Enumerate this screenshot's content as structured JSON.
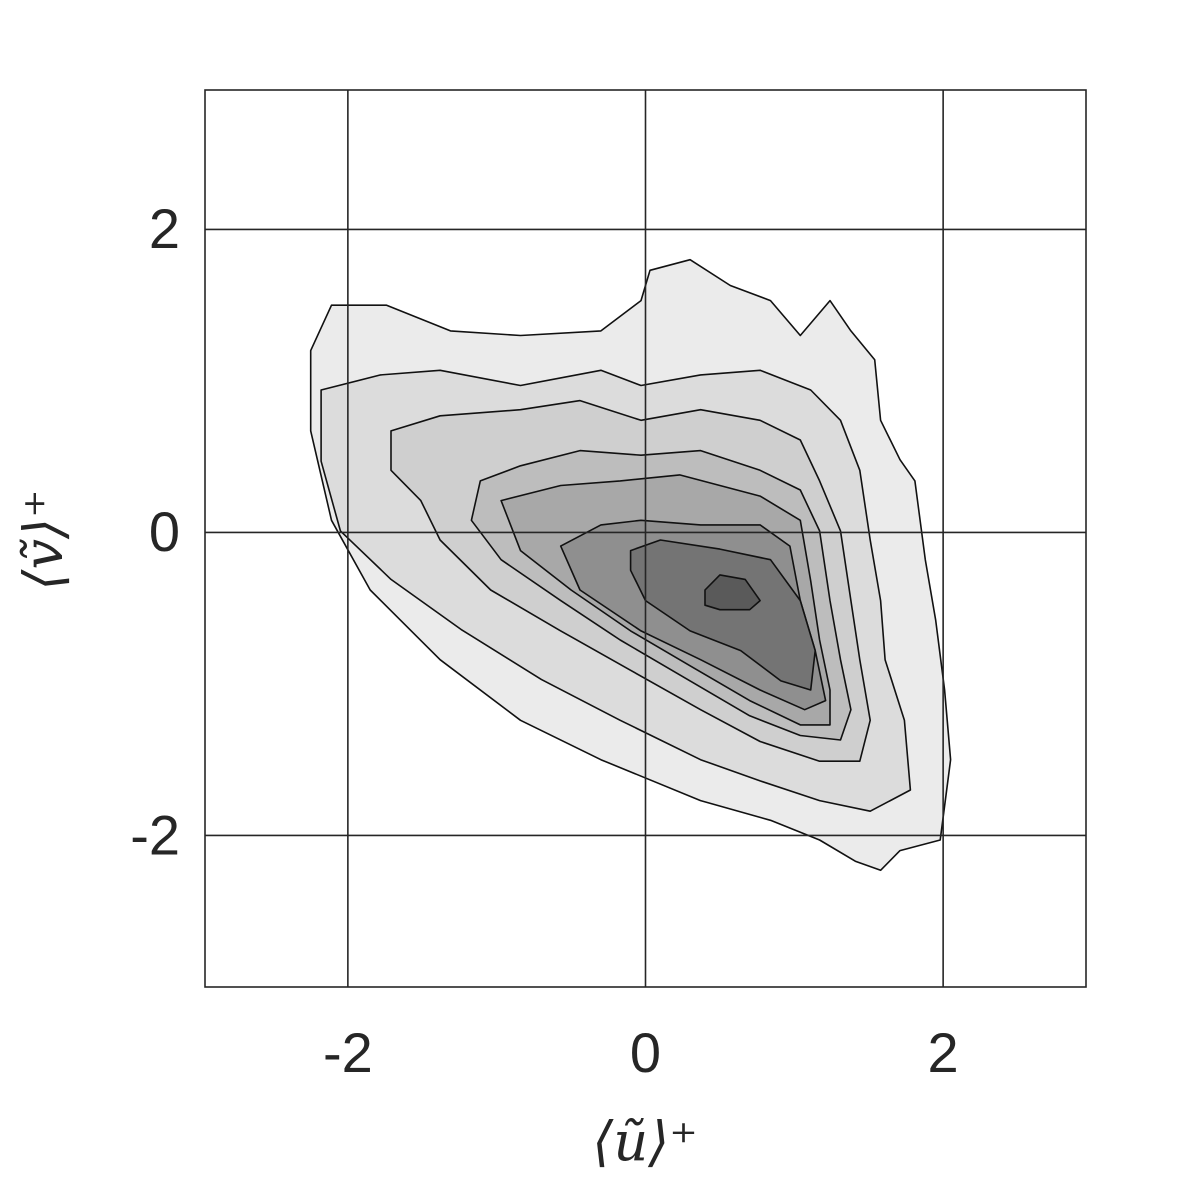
{
  "chart_data": {
    "type": "contour",
    "x_label": "⟨ũ⟩⁺",
    "y_label": "⟨ṽ⟩⁺",
    "xlim": [
      -2.96,
      2.96
    ],
    "ylim": [
      -3.0,
      2.92
    ],
    "xticks": [
      -2,
      0,
      2
    ],
    "yticks": [
      -2,
      0,
      2
    ],
    "grid": true,
    "contours": [
      {
        "color": "#ebebeb",
        "x": [
          -2.25,
          -2.11,
          -1.74,
          -1.31,
          -0.84,
          -0.3,
          -0.03,
          0.03,
          0.3,
          0.57,
          0.84,
          1.04,
          1.24,
          1.38,
          1.54,
          1.58,
          1.71,
          1.81,
          1.88,
          1.95,
          2.01,
          2.05,
          1.98,
          1.71,
          1.58,
          1.41,
          1.17,
          0.84,
          0.37,
          -0.3,
          -0.84,
          -1.38,
          -1.85,
          -2.11,
          -2.25
        ],
        "y": [
          1.2,
          1.5,
          1.5,
          1.33,
          1.3,
          1.33,
          1.53,
          1.73,
          1.8,
          1.63,
          1.53,
          1.3,
          1.53,
          1.33,
          1.14,
          0.74,
          0.48,
          0.34,
          -0.18,
          -0.58,
          -1.04,
          -1.5,
          -2.03,
          -2.1,
          -2.23,
          -2.17,
          -2.03,
          -1.9,
          -1.77,
          -1.5,
          -1.24,
          -0.84,
          -0.38,
          0.08,
          0.67
        ]
      },
      {
        "color": "#dcdcdc",
        "x": [
          -2.18,
          -1.78,
          -1.38,
          -0.84,
          -0.3,
          -0.03,
          0.37,
          0.77,
          1.11,
          1.31,
          1.44,
          1.51,
          1.58,
          1.61,
          1.74,
          1.78,
          1.51,
          1.17,
          0.77,
          0.37,
          -0.17,
          -0.7,
          -1.24,
          -1.71,
          -2.05,
          -2.18
        ],
        "y": [
          0.94,
          1.04,
          1.07,
          0.97,
          1.07,
          0.97,
          1.04,
          1.07,
          0.94,
          0.74,
          0.41,
          -0.05,
          -0.45,
          -0.84,
          -1.24,
          -1.7,
          -1.84,
          -1.77,
          -1.64,
          -1.5,
          -1.24,
          -0.97,
          -0.64,
          -0.31,
          0.01,
          0.47
        ]
      },
      {
        "color": "#cfcfcf",
        "x": [
          -1.71,
          -1.38,
          -0.84,
          -0.44,
          -0.03,
          0.37,
          0.77,
          1.04,
          1.17,
          1.31,
          1.38,
          1.44,
          1.51,
          1.44,
          1.17,
          0.77,
          0.37,
          -0.1,
          -0.57,
          -1.04,
          -1.38,
          -1.51,
          -1.71
        ],
        "y": [
          0.67,
          0.77,
          0.81,
          0.87,
          0.74,
          0.81,
          0.74,
          0.61,
          0.34,
          0.01,
          -0.45,
          -0.84,
          -1.24,
          -1.51,
          -1.51,
          -1.38,
          -1.17,
          -0.91,
          -0.65,
          -0.38,
          -0.05,
          0.21,
          0.41
        ]
      },
      {
        "color": "#bdbdbd",
        "x": [
          -1.11,
          -0.84,
          -0.44,
          -0.03,
          0.37,
          0.77,
          1.04,
          1.17,
          1.24,
          1.31,
          1.38,
          1.31,
          1.04,
          0.7,
          0.3,
          -0.17,
          -0.57,
          -0.97,
          -1.17
        ],
        "y": [
          0.34,
          0.44,
          0.54,
          0.51,
          0.54,
          0.41,
          0.28,
          0.01,
          -0.45,
          -0.84,
          -1.17,
          -1.37,
          -1.34,
          -1.21,
          -0.98,
          -0.71,
          -0.45,
          -0.18,
          0.08
        ]
      },
      {
        "color": "#a8a8a8",
        "x": [
          -0.97,
          -0.57,
          -0.17,
          0.23,
          0.77,
          1.04,
          1.11,
          1.17,
          1.24,
          1.24,
          1.04,
          0.7,
          0.3,
          -0.1,
          -0.5,
          -0.84
        ],
        "y": [
          0.21,
          0.31,
          0.34,
          0.38,
          0.24,
          0.08,
          -0.32,
          -0.71,
          -1.04,
          -1.27,
          -1.27,
          -1.11,
          -0.88,
          -0.65,
          -0.38,
          -0.12
        ]
      },
      {
        "color": "#8f8f8f",
        "x": [
          -0.57,
          -0.3,
          -0.03,
          0.37,
          0.77,
          0.97,
          1.04,
          1.14,
          1.21,
          1.07,
          0.77,
          0.37,
          -0.03,
          -0.44
        ],
        "y": [
          -0.09,
          0.05,
          0.08,
          0.05,
          0.05,
          -0.09,
          -0.45,
          -0.78,
          -1.11,
          -1.17,
          -1.04,
          -0.84,
          -0.65,
          -0.38
        ]
      },
      {
        "color": "#747474",
        "x": [
          -0.1,
          0.1,
          0.5,
          0.84,
          1.04,
          1.14,
          1.11,
          0.91,
          0.64,
          0.3,
          0.0,
          -0.1
        ],
        "y": [
          -0.12,
          -0.05,
          -0.11,
          -0.18,
          -0.45,
          -0.78,
          -1.04,
          -0.98,
          -0.78,
          -0.65,
          -0.45,
          -0.25
        ]
      },
      {
        "color": "#5a5a5a",
        "x": [
          0.4,
          0.5,
          0.67,
          0.77,
          0.7,
          0.5,
          0.4
        ],
        "y": [
          -0.38,
          -0.28,
          -0.31,
          -0.45,
          -0.51,
          -0.51,
          -0.48
        ]
      }
    ]
  }
}
